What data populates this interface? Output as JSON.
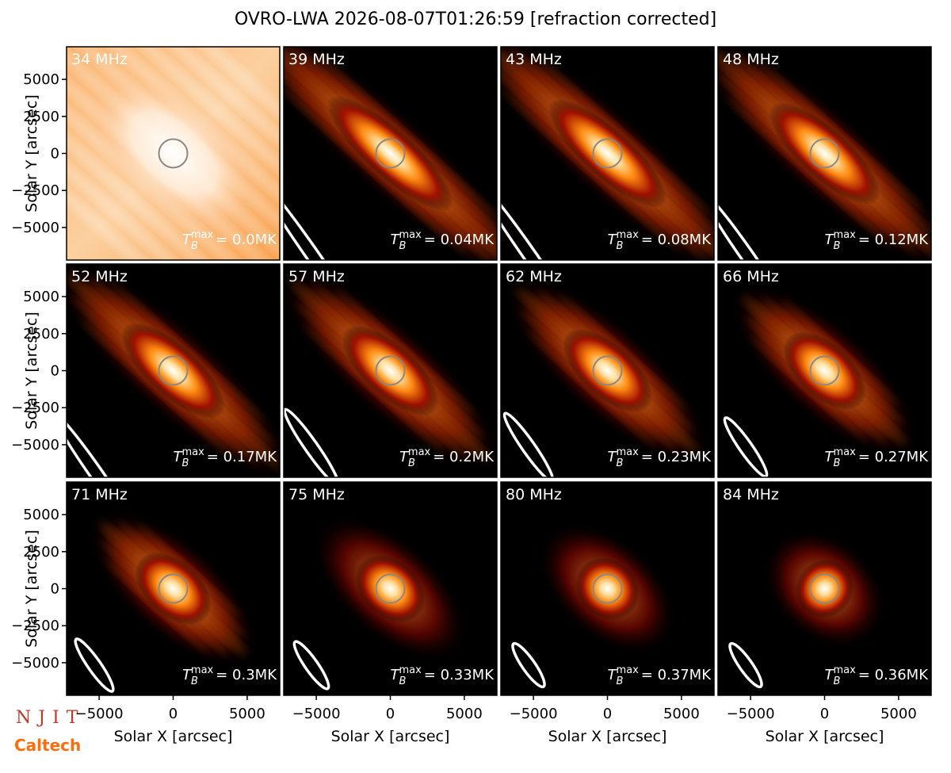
{
  "chart_data": {
    "type": "image-grid",
    "title": "OVRO-LWA 2026-08-07T01:26:59 [refraction corrected]",
    "xlabel": "Solar X [arcsec]",
    "ylabel": "Solar Y [arcsec]",
    "xlim": [
      -7200,
      7200
    ],
    "ylim": [
      -7200,
      7200
    ],
    "xticks": [
      {
        "value": -5000,
        "label": "−5000"
      },
      0,
      5000
    ],
    "yticks": [
      {
        "value": -5000,
        "label": "−5000"
      },
      {
        "value": -2500,
        "label": "−2500"
      },
      0,
      2500,
      5000
    ],
    "tb_symbol": {
      "base": "T",
      "sub": "B",
      "sup": "max"
    },
    "panels": [
      {
        "label": "34 MHz",
        "tmax": "= 0.0MK"
      },
      {
        "label": "39 MHz",
        "tmax": "= 0.04MK"
      },
      {
        "label": "43 MHz",
        "tmax": "= 0.08MK"
      },
      {
        "label": "48 MHz",
        "tmax": "= 0.12MK"
      },
      {
        "label": "52 MHz",
        "tmax": "= 0.17MK"
      },
      {
        "label": "57 MHz",
        "tmax": "= 0.2MK"
      },
      {
        "label": "62 MHz",
        "tmax": "= 0.23MK"
      },
      {
        "label": "66 MHz",
        "tmax": "= 0.27MK"
      },
      {
        "label": "71 MHz",
        "tmax": "= 0.3MK"
      },
      {
        "label": "75 MHz",
        "tmax": "= 0.33MK"
      },
      {
        "label": "80 MHz",
        "tmax": "= 0.37MK"
      },
      {
        "label": "84 MHz",
        "tmax": "= 0.36MK"
      }
    ]
  },
  "logos": {
    "njit": "NJIT",
    "caltech": "Caltech"
  }
}
